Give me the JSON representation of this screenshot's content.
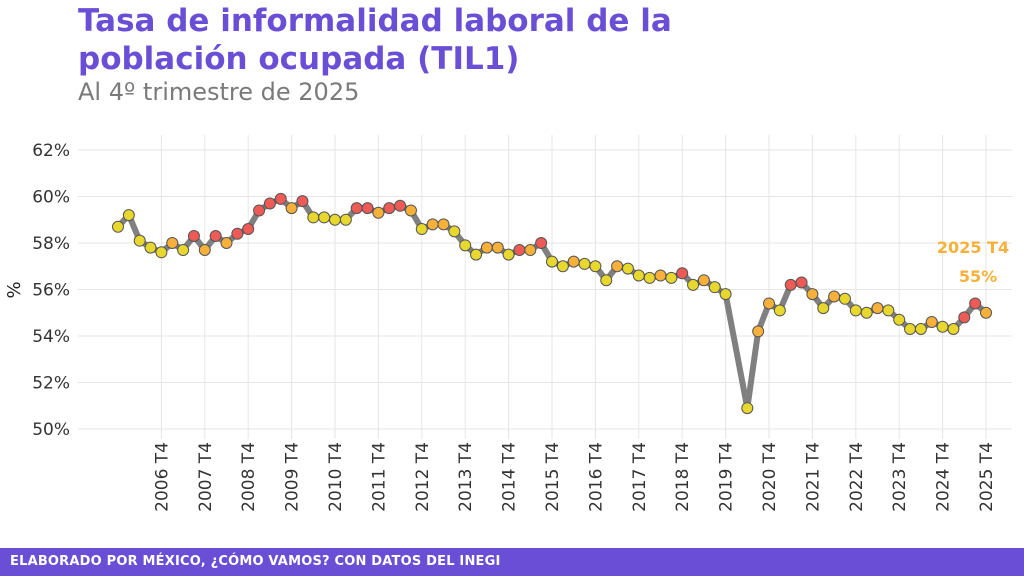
{
  "title": "Tasa de informalidad laboral de la población ocupada (TIL1)",
  "subtitle": "Al 4º trimestre de 2025",
  "footer": "ELABORADO POR MÉXICO, ¿CÓMO VAMOS? CON DATOS DEL INEGI",
  "colors": {
    "accent": "#6a4fd6",
    "line": "#808080",
    "yellow": "#e8d82e",
    "orange": "#f7b13a",
    "red": "#ee5a55",
    "annotation": "#f7b13a"
  },
  "chart_data": {
    "type": "line",
    "ylabel": "%",
    "xlabel": "",
    "ylim": [
      50,
      62
    ],
    "yticks": [
      "50%",
      "52%",
      "54%",
      "56%",
      "58%",
      "60%",
      "62%"
    ],
    "xticks": [
      "2006 T4",
      "2007 T4",
      "2008 T4",
      "2009 T4",
      "2010 T4",
      "2011 T4",
      "2012 T4",
      "2013 T4",
      "2014 T4",
      "2015 T4",
      "2016 T4",
      "2017 T4",
      "2018 T4",
      "2019 T4",
      "2020 T4",
      "2021 T4",
      "2022 T4",
      "2023 T4",
      "2024 T4",
      "2025 T4"
    ],
    "grid": true,
    "annotation": {
      "label": "2025 T4",
      "value": "55%"
    },
    "points": [
      {
        "x": "2005 T4",
        "y": 58.7,
        "c": "yellow"
      },
      {
        "x": "2006 T1",
        "y": 59.2,
        "c": "yellow"
      },
      {
        "x": "2006 T2",
        "y": 58.1,
        "c": "yellow"
      },
      {
        "x": "2006 T3",
        "y": 57.8,
        "c": "yellow"
      },
      {
        "x": "2006 T4",
        "y": 57.6,
        "c": "yellow"
      },
      {
        "x": "2007 T1",
        "y": 58.0,
        "c": "orange"
      },
      {
        "x": "2007 T2",
        "y": 57.7,
        "c": "yellow"
      },
      {
        "x": "2007 T3",
        "y": 58.3,
        "c": "red"
      },
      {
        "x": "2007 T4",
        "y": 57.7,
        "c": "orange"
      },
      {
        "x": "2008 T1",
        "y": 58.3,
        "c": "red"
      },
      {
        "x": "2008 T2",
        "y": 58.0,
        "c": "orange"
      },
      {
        "x": "2008 T3",
        "y": 58.4,
        "c": "red"
      },
      {
        "x": "2008 T4",
        "y": 58.6,
        "c": "red"
      },
      {
        "x": "2009 T1",
        "y": 59.4,
        "c": "red"
      },
      {
        "x": "2009 T2",
        "y": 59.7,
        "c": "red"
      },
      {
        "x": "2009 T3",
        "y": 59.9,
        "c": "red"
      },
      {
        "x": "2009 T4",
        "y": 59.5,
        "c": "orange"
      },
      {
        "x": "2010 T1",
        "y": 59.8,
        "c": "red"
      },
      {
        "x": "2010 T2",
        "y": 59.1,
        "c": "yellow"
      },
      {
        "x": "2010 T3",
        "y": 59.1,
        "c": "yellow"
      },
      {
        "x": "2010 T4",
        "y": 59.0,
        "c": "yellow"
      },
      {
        "x": "2011 T1",
        "y": 59.0,
        "c": "yellow"
      },
      {
        "x": "2011 T2",
        "y": 59.5,
        "c": "red"
      },
      {
        "x": "2011 T3",
        "y": 59.5,
        "c": "red"
      },
      {
        "x": "2011 T4",
        "y": 59.3,
        "c": "orange"
      },
      {
        "x": "2012 T1",
        "y": 59.5,
        "c": "red"
      },
      {
        "x": "2012 T2",
        "y": 59.6,
        "c": "red"
      },
      {
        "x": "2012 T3",
        "y": 59.4,
        "c": "orange"
      },
      {
        "x": "2012 T4",
        "y": 58.6,
        "c": "yellow"
      },
      {
        "x": "2013 T1",
        "y": 58.8,
        "c": "orange"
      },
      {
        "x": "2013 T2",
        "y": 58.8,
        "c": "orange"
      },
      {
        "x": "2013 T3",
        "y": 58.5,
        "c": "yellow"
      },
      {
        "x": "2013 T4",
        "y": 57.9,
        "c": "yellow"
      },
      {
        "x": "2014 T1",
        "y": 57.5,
        "c": "yellow"
      },
      {
        "x": "2014 T2",
        "y": 57.8,
        "c": "orange"
      },
      {
        "x": "2014 T3",
        "y": 57.8,
        "c": "orange"
      },
      {
        "x": "2014 T4",
        "y": 57.5,
        "c": "yellow"
      },
      {
        "x": "2015 T1",
        "y": 57.7,
        "c": "red"
      },
      {
        "x": "2015 T2",
        "y": 57.7,
        "c": "orange"
      },
      {
        "x": "2015 T3",
        "y": 58.0,
        "c": "red"
      },
      {
        "x": "2015 T4",
        "y": 57.2,
        "c": "yellow"
      },
      {
        "x": "2016 T1",
        "y": 57.0,
        "c": "yellow"
      },
      {
        "x": "2016 T2",
        "y": 57.2,
        "c": "orange"
      },
      {
        "x": "2016 T3",
        "y": 57.1,
        "c": "yellow"
      },
      {
        "x": "2016 T4",
        "y": 57.0,
        "c": "yellow"
      },
      {
        "x": "2017 T1",
        "y": 56.4,
        "c": "yellow"
      },
      {
        "x": "2017 T2",
        "y": 57.0,
        "c": "orange"
      },
      {
        "x": "2017 T3",
        "y": 56.9,
        "c": "yellow"
      },
      {
        "x": "2017 T4",
        "y": 56.6,
        "c": "yellow"
      },
      {
        "x": "2018 T1",
        "y": 56.5,
        "c": "yellow"
      },
      {
        "x": "2018 T2",
        "y": 56.6,
        "c": "orange"
      },
      {
        "x": "2018 T3",
        "y": 56.5,
        "c": "yellow"
      },
      {
        "x": "2018 T4",
        "y": 56.7,
        "c": "red"
      },
      {
        "x": "2019 T1",
        "y": 56.2,
        "c": "yellow"
      },
      {
        "x": "2019 T2",
        "y": 56.4,
        "c": "orange"
      },
      {
        "x": "2019 T3",
        "y": 56.1,
        "c": "yellow"
      },
      {
        "x": "2019 T4",
        "y": 55.8,
        "c": "yellow"
      },
      {
        "x": "2020 T2",
        "y": 50.9,
        "c": "yellow"
      },
      {
        "x": "2020 T3",
        "y": 54.2,
        "c": "orange"
      },
      {
        "x": "2020 T4",
        "y": 55.4,
        "c": "orange"
      },
      {
        "x": "2021 T1",
        "y": 55.1,
        "c": "yellow"
      },
      {
        "x": "2021 T2",
        "y": 56.2,
        "c": "red"
      },
      {
        "x": "2021 T3",
        "y": 56.3,
        "c": "red"
      },
      {
        "x": "2021 T4",
        "y": 55.8,
        "c": "orange"
      },
      {
        "x": "2022 T1",
        "y": 55.2,
        "c": "yellow"
      },
      {
        "x": "2022 T2",
        "y": 55.7,
        "c": "orange"
      },
      {
        "x": "2022 T3",
        "y": 55.6,
        "c": "yellow"
      },
      {
        "x": "2022 T4",
        "y": 55.1,
        "c": "yellow"
      },
      {
        "x": "2023 T1",
        "y": 55.0,
        "c": "yellow"
      },
      {
        "x": "2023 T2",
        "y": 55.2,
        "c": "orange"
      },
      {
        "x": "2023 T3",
        "y": 55.1,
        "c": "yellow"
      },
      {
        "x": "2023 T4",
        "y": 54.7,
        "c": "yellow"
      },
      {
        "x": "2024 T1",
        "y": 54.3,
        "c": "yellow"
      },
      {
        "x": "2024 T2",
        "y": 54.3,
        "c": "yellow"
      },
      {
        "x": "2024 T3",
        "y": 54.6,
        "c": "orange"
      },
      {
        "x": "2024 T4",
        "y": 54.4,
        "c": "yellow"
      },
      {
        "x": "2025 T1",
        "y": 54.3,
        "c": "yellow"
      },
      {
        "x": "2025 T2",
        "y": 54.8,
        "c": "red"
      },
      {
        "x": "2025 T3",
        "y": 55.4,
        "c": "red"
      },
      {
        "x": "2025 T4",
        "y": 55.0,
        "c": "orange"
      }
    ]
  }
}
